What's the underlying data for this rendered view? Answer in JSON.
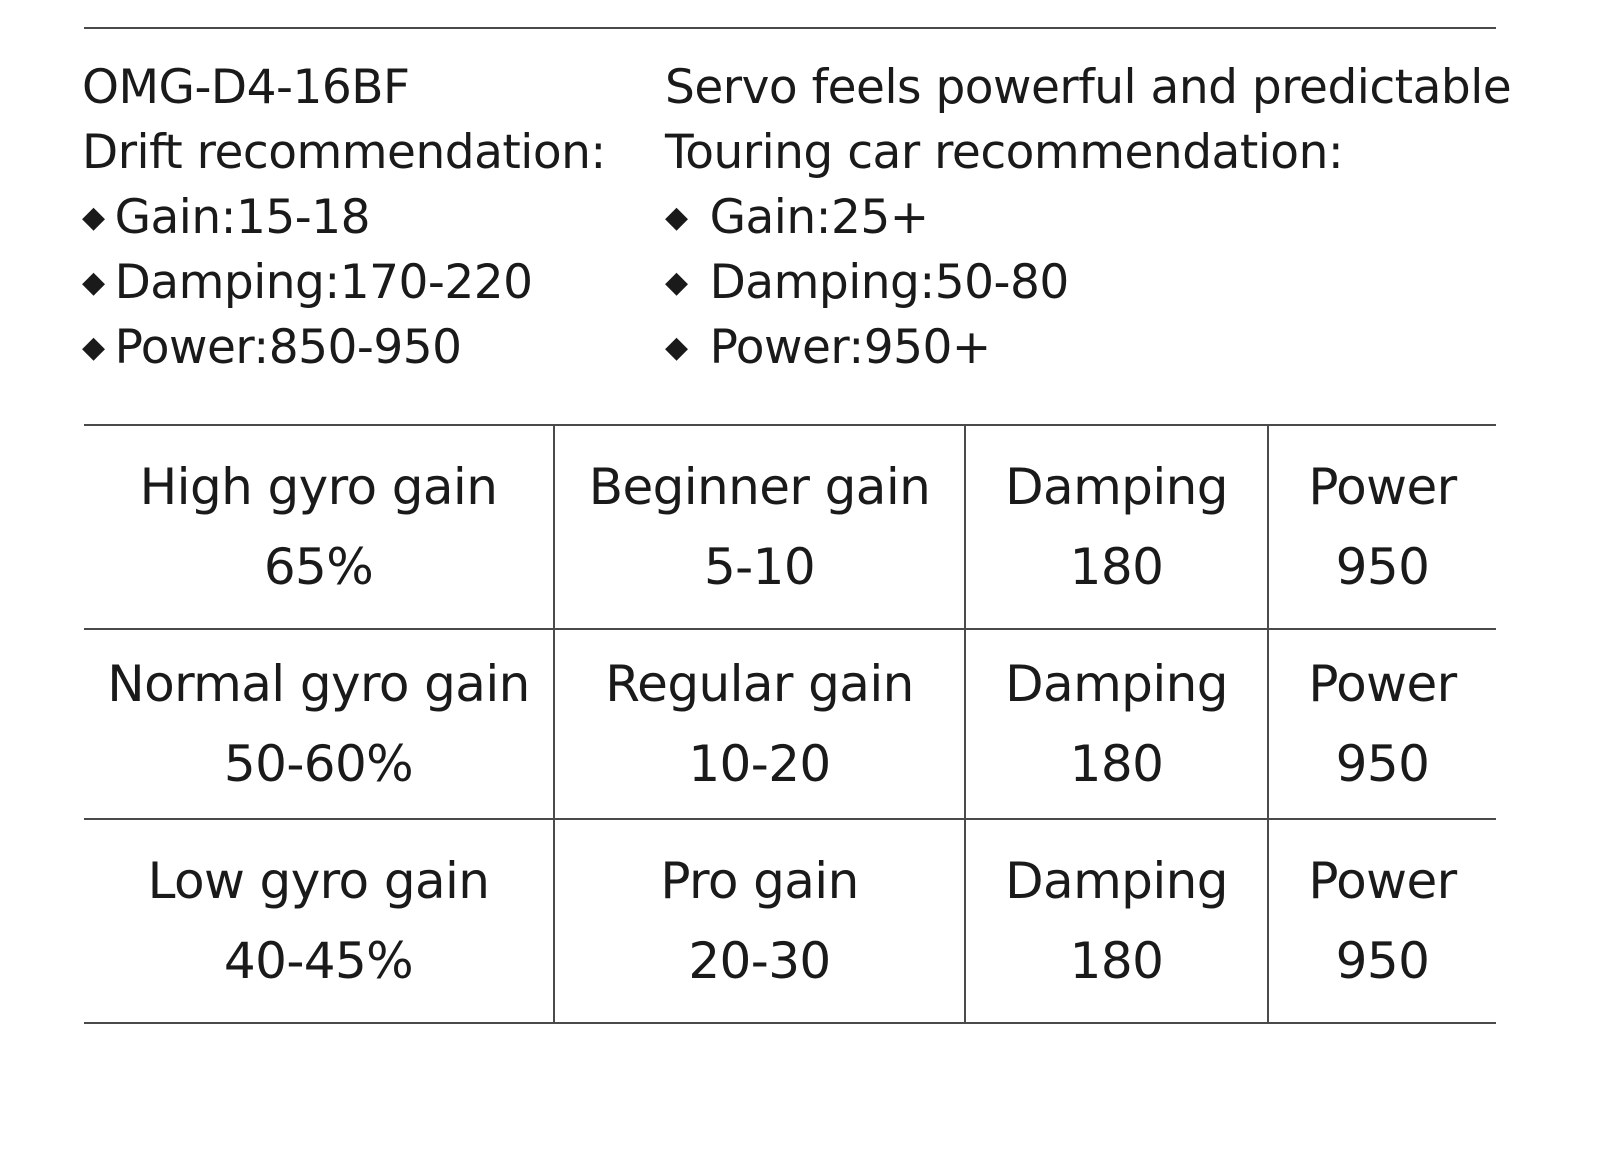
{
  "header": {
    "model": "OMG-D4-16BF",
    "tagline": "Servo feels powerful and predictable"
  },
  "drift": {
    "title": "Drift recommendation:",
    "bullet_glyph": "◆",
    "items": [
      "Gain:15-18",
      "Damping:170-220",
      "Power:850-950"
    ]
  },
  "touring": {
    "title": "Touring car recommendation:",
    "bullet_glyph": "◆",
    "items": [
      "Gain:25+",
      "Damping:50-80",
      "Power:950+"
    ]
  },
  "table": {
    "rows": [
      {
        "gyro_label": "High gyro gain",
        "gyro_value": "65%",
        "gain_label": "Beginner gain",
        "gain_value": "5-10",
        "damping_label": "Damping",
        "damping_value": "180",
        "power_label": "Power",
        "power_value": "950"
      },
      {
        "gyro_label": "Normal gyro gain",
        "gyro_value": "50-60%",
        "gain_label": "Regular gain",
        "gain_value": "10-20",
        "damping_label": "Damping",
        "damping_value": "180",
        "power_label": "Power",
        "power_value": "950"
      },
      {
        "gyro_label": "Low gyro gain",
        "gyro_value": "40-45%",
        "gain_label": "Pro gain",
        "gain_value": "20-30",
        "damping_label": "Damping",
        "damping_value": "180",
        "power_label": "Power",
        "power_value": "950"
      }
    ]
  }
}
